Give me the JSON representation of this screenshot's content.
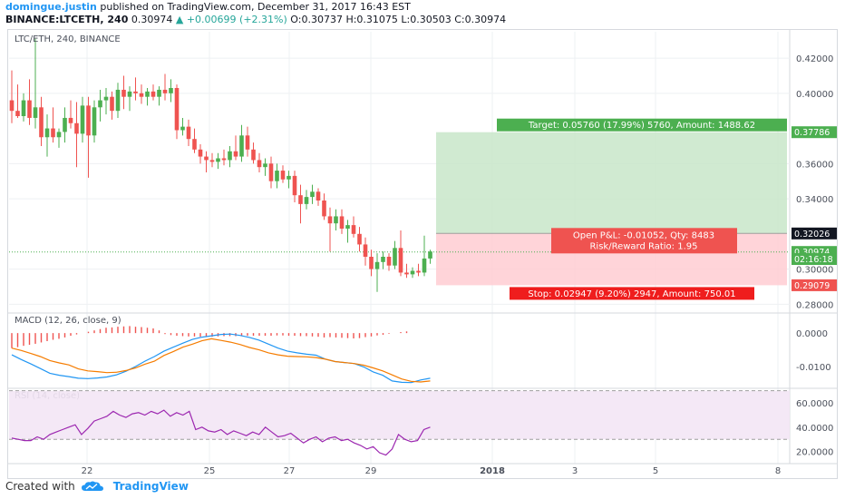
{
  "header": {
    "author": "domingue.justin",
    "published": "published on TradingView.com, December 31, 2017 16:43 EST",
    "symbol": "BINANCE:LTCETH, 240",
    "last": "0.30974",
    "change": "+0.00699 (+2.31%)",
    "ohlc_o": "O:0.30737",
    "ohlc_h": "H:0.31075",
    "ohlc_l": "L:0.30503",
    "ohlc_c": "C:0.30974"
  },
  "footer": {
    "created_with": "Created with",
    "brand": "TradingView"
  },
  "colors": {
    "up": "#4caf50",
    "down": "#ef5350",
    "macd": "#2196f3",
    "signal": "#f57c00",
    "rsi": "#9c27b0",
    "target_zone": "#c8e6c9",
    "stop_zone": "#ffcdd2",
    "author": "#2196f3"
  },
  "chart_data": [
    {
      "type": "candlestick",
      "title": "LTC/ETH, 240, BINANCE",
      "x_labels": [
        "22",
        "25",
        "27",
        "29",
        "2018",
        "3",
        "5",
        "8"
      ],
      "ylim": [
        0.275,
        0.435
      ],
      "y_ticks": [
        "0.42000",
        "0.40000",
        "0.36000",
        "0.34000",
        "0.30000",
        "0.28000"
      ],
      "price_tags": [
        {
          "label": "0.37786",
          "value": 0.37786,
          "color": "#4caf50"
        },
        {
          "label": "0.32026",
          "value": 0.32026,
          "color": "#131722"
        },
        {
          "label": "0.30974",
          "value": 0.30974,
          "color": "#4caf50"
        },
        {
          "label": "02:16:18",
          "value": 0.3057,
          "color": "#4caf50"
        },
        {
          "label": "0.29079",
          "value": 0.29079,
          "color": "#ef5350"
        }
      ],
      "candles": [
        {
          "o": 0.396,
          "h": 0.413,
          "l": 0.383,
          "c": 0.39
        },
        {
          "o": 0.39,
          "h": 0.405,
          "l": 0.386,
          "c": 0.387
        },
        {
          "o": 0.387,
          "h": 0.4,
          "l": 0.384,
          "c": 0.396
        },
        {
          "o": 0.396,
          "h": 0.408,
          "l": 0.382,
          "c": 0.386
        },
        {
          "o": 0.386,
          "h": 0.431,
          "l": 0.38,
          "c": 0.392
        },
        {
          "o": 0.392,
          "h": 0.398,
          "l": 0.37,
          "c": 0.375
        },
        {
          "o": 0.375,
          "h": 0.388,
          "l": 0.364,
          "c": 0.38
        },
        {
          "o": 0.38,
          "h": 0.392,
          "l": 0.372,
          "c": 0.375
        },
        {
          "o": 0.375,
          "h": 0.38,
          "l": 0.369,
          "c": 0.378
        },
        {
          "o": 0.378,
          "h": 0.392,
          "l": 0.372,
          "c": 0.386
        },
        {
          "o": 0.386,
          "h": 0.396,
          "l": 0.38,
          "c": 0.383
        },
        {
          "o": 0.383,
          "h": 0.395,
          "l": 0.358,
          "c": 0.377
        },
        {
          "o": 0.377,
          "h": 0.398,
          "l": 0.372,
          "c": 0.393
        },
        {
          "o": 0.393,
          "h": 0.398,
          "l": 0.352,
          "c": 0.376
        },
        {
          "o": 0.376,
          "h": 0.396,
          "l": 0.372,
          "c": 0.392
        },
        {
          "o": 0.392,
          "h": 0.402,
          "l": 0.384,
          "c": 0.396
        },
        {
          "o": 0.396,
          "h": 0.403,
          "l": 0.388,
          "c": 0.398
        },
        {
          "o": 0.398,
          "h": 0.401,
          "l": 0.385,
          "c": 0.39
        },
        {
          "o": 0.39,
          "h": 0.406,
          "l": 0.386,
          "c": 0.402
        },
        {
          "o": 0.402,
          "h": 0.41,
          "l": 0.391,
          "c": 0.398
        },
        {
          "o": 0.398,
          "h": 0.404,
          "l": 0.39,
          "c": 0.401
        },
        {
          "o": 0.401,
          "h": 0.409,
          "l": 0.396,
          "c": 0.4
        },
        {
          "o": 0.4,
          "h": 0.405,
          "l": 0.394,
          "c": 0.398
        },
        {
          "o": 0.398,
          "h": 0.403,
          "l": 0.393,
          "c": 0.401
        },
        {
          "o": 0.401,
          "h": 0.405,
          "l": 0.396,
          "c": 0.398
        },
        {
          "o": 0.398,
          "h": 0.404,
          "l": 0.393,
          "c": 0.402
        },
        {
          "o": 0.402,
          "h": 0.411,
          "l": 0.396,
          "c": 0.4
        },
        {
          "o": 0.4,
          "h": 0.408,
          "l": 0.395,
          "c": 0.403
        },
        {
          "o": 0.403,
          "h": 0.405,
          "l": 0.374,
          "c": 0.379
        },
        {
          "o": 0.379,
          "h": 0.386,
          "l": 0.376,
          "c": 0.381
        },
        {
          "o": 0.381,
          "h": 0.385,
          "l": 0.37,
          "c": 0.374
        },
        {
          "o": 0.374,
          "h": 0.38,
          "l": 0.366,
          "c": 0.368
        },
        {
          "o": 0.368,
          "h": 0.371,
          "l": 0.36,
          "c": 0.364
        },
        {
          "o": 0.364,
          "h": 0.367,
          "l": 0.355,
          "c": 0.362
        },
        {
          "o": 0.362,
          "h": 0.366,
          "l": 0.358,
          "c": 0.361
        },
        {
          "o": 0.361,
          "h": 0.366,
          "l": 0.357,
          "c": 0.363
        },
        {
          "o": 0.363,
          "h": 0.368,
          "l": 0.359,
          "c": 0.362
        },
        {
          "o": 0.362,
          "h": 0.37,
          "l": 0.358,
          "c": 0.367
        },
        {
          "o": 0.367,
          "h": 0.376,
          "l": 0.362,
          "c": 0.364
        },
        {
          "o": 0.364,
          "h": 0.382,
          "l": 0.361,
          "c": 0.376
        },
        {
          "o": 0.376,
          "h": 0.381,
          "l": 0.364,
          "c": 0.368
        },
        {
          "o": 0.368,
          "h": 0.372,
          "l": 0.36,
          "c": 0.362
        },
        {
          "o": 0.362,
          "h": 0.366,
          "l": 0.355,
          "c": 0.358
        },
        {
          "o": 0.358,
          "h": 0.363,
          "l": 0.353,
          "c": 0.36
        },
        {
          "o": 0.36,
          "h": 0.364,
          "l": 0.346,
          "c": 0.35
        },
        {
          "o": 0.35,
          "h": 0.36,
          "l": 0.346,
          "c": 0.356
        },
        {
          "o": 0.356,
          "h": 0.359,
          "l": 0.349,
          "c": 0.351
        },
        {
          "o": 0.351,
          "h": 0.356,
          "l": 0.346,
          "c": 0.353
        },
        {
          "o": 0.353,
          "h": 0.356,
          "l": 0.338,
          "c": 0.342
        },
        {
          "o": 0.342,
          "h": 0.348,
          "l": 0.326,
          "c": 0.337
        },
        {
          "o": 0.337,
          "h": 0.345,
          "l": 0.334,
          "c": 0.341
        },
        {
          "o": 0.341,
          "h": 0.348,
          "l": 0.337,
          "c": 0.344
        },
        {
          "o": 0.344,
          "h": 0.346,
          "l": 0.336,
          "c": 0.339
        },
        {
          "o": 0.339,
          "h": 0.343,
          "l": 0.328,
          "c": 0.33
        },
        {
          "o": 0.33,
          "h": 0.335,
          "l": 0.31,
          "c": 0.326
        },
        {
          "o": 0.326,
          "h": 0.334,
          "l": 0.322,
          "c": 0.33
        },
        {
          "o": 0.33,
          "h": 0.334,
          "l": 0.32,
          "c": 0.323
        },
        {
          "o": 0.323,
          "h": 0.328,
          "l": 0.315,
          "c": 0.325
        },
        {
          "o": 0.325,
          "h": 0.33,
          "l": 0.318,
          "c": 0.32
        },
        {
          "o": 0.32,
          "h": 0.324,
          "l": 0.31,
          "c": 0.314
        },
        {
          "o": 0.314,
          "h": 0.318,
          "l": 0.302,
          "c": 0.307
        },
        {
          "o": 0.307,
          "h": 0.311,
          "l": 0.296,
          "c": 0.3
        },
        {
          "o": 0.3,
          "h": 0.309,
          "l": 0.287,
          "c": 0.304
        },
        {
          "o": 0.304,
          "h": 0.31,
          "l": 0.3,
          "c": 0.307
        },
        {
          "o": 0.307,
          "h": 0.309,
          "l": 0.299,
          "c": 0.302
        },
        {
          "o": 0.302,
          "h": 0.316,
          "l": 0.3,
          "c": 0.312
        },
        {
          "o": 0.312,
          "h": 0.322,
          "l": 0.296,
          "c": 0.298
        },
        {
          "o": 0.298,
          "h": 0.303,
          "l": 0.295,
          "c": 0.297
        },
        {
          "o": 0.297,
          "h": 0.301,
          "l": 0.295,
          "c": 0.299
        },
        {
          "o": 0.299,
          "h": 0.303,
          "l": 0.296,
          "c": 0.298
        },
        {
          "o": 0.298,
          "h": 0.319,
          "l": 0.296,
          "c": 0.306
        },
        {
          "o": 0.306,
          "h": 0.311,
          "l": 0.303,
          "c": 0.31
        }
      ],
      "current_price": 0.30974,
      "position": {
        "entry": 0.32026,
        "target": 0.37786,
        "stop": 0.29079,
        "target_label": "Target: 0.05760 (17.99%) 5760, Amount: 1488.62",
        "pnl_label": "Open P&L: -0.01052, Qty: 8483",
        "rr_label": "Risk/Reward Ratio: 1.95",
        "stop_label": "Stop: 0.02947 (9.20%) 2947, Amount: 750.01"
      }
    },
    {
      "type": "line",
      "title": "MACD (12, 26, close, 9)",
      "ylim": [
        -0.0165,
        0.006
      ],
      "y_ticks": [
        "0.0000",
        "-0.0100"
      ],
      "series": [
        {
          "values": [
            -0.0065,
            -0.0079,
            -0.0092,
            -0.0106,
            -0.012,
            -0.0126,
            -0.013,
            -0.0135,
            -0.0136,
            -0.0134,
            -0.0131,
            -0.0125,
            -0.0114,
            -0.01,
            -0.0084,
            -0.007,
            -0.0054,
            -0.0042,
            -0.003,
            -0.0019,
            -0.0012,
            -0.0008,
            -0.0004,
            -0.0003,
            -0.0007,
            -0.0013,
            -0.0021,
            -0.0033,
            -0.0045,
            -0.0054,
            -0.0059,
            -0.0063,
            -0.0066,
            -0.0078,
            -0.0085,
            -0.0088,
            -0.0091,
            -0.0101,
            -0.0116,
            -0.0126,
            -0.0143,
            -0.0147,
            -0.0148,
            -0.014,
            -0.0135
          ]
        },
        {
          "values": [
            -0.0045,
            -0.0052,
            -0.0061,
            -0.007,
            -0.0082,
            -0.0089,
            -0.0095,
            -0.0107,
            -0.0113,
            -0.0115,
            -0.0118,
            -0.0117,
            -0.0112,
            -0.0104,
            -0.0093,
            -0.0084,
            -0.0067,
            -0.0055,
            -0.0042,
            -0.0033,
            -0.0023,
            -0.0017,
            -0.0022,
            -0.0027,
            -0.0034,
            -0.0043,
            -0.005,
            -0.0059,
            -0.0065,
            -0.0069,
            -0.007,
            -0.0071,
            -0.0073,
            -0.0078,
            -0.0085,
            -0.0088,
            -0.0091,
            -0.0096,
            -0.0104,
            -0.0113,
            -0.0125,
            -0.0137,
            -0.0144,
            -0.0146,
            -0.0143
          ]
        }
      ],
      "histogram": [
        -0.0045,
        -0.0042,
        -0.0038,
        -0.0035,
        -0.0032,
        -0.0028,
        -0.0024,
        -0.002,
        -0.0017,
        -0.0013,
        -0.0008,
        -0.0004,
        0.0,
        0.0004,
        0.0008,
        0.0012,
        0.0016,
        0.0017,
        0.0019,
        0.002,
        0.0021,
        0.0019,
        0.0018,
        0.0016,
        0.0014,
        0.0008,
        -0.0003,
        -0.0006,
        -0.0008,
        -0.0009,
        -0.001,
        -0.001,
        -0.0011,
        -0.0011,
        -0.0011,
        -0.001,
        -0.0009,
        -0.0009,
        -0.0009,
        -0.0008,
        -0.0008,
        -0.0008,
        -0.0008,
        -0.0008,
        -0.0008,
        -0.0007,
        -0.0007,
        -0.0008,
        -0.0008,
        -0.0009,
        -0.0009,
        -0.001,
        -0.0011,
        -0.0013,
        -0.0012,
        -0.0013,
        -0.0014,
        -0.0015,
        -0.0016,
        -0.0015,
        -0.0012,
        -0.001,
        -0.0007,
        -0.0005,
        -0.0002,
        0.0,
        0.0003,
        0.0005
      ]
    },
    {
      "type": "line",
      "title": "RSI (14, close)",
      "ylim": [
        10,
        72
      ],
      "y_ticks": [
        "60.0000",
        "40.0000",
        "20.0000"
      ],
      "band": [
        30,
        70
      ],
      "series": [
        {
          "values": [
            31,
            30,
            29,
            29,
            32,
            30,
            34,
            36,
            38,
            40,
            42,
            34,
            39,
            45,
            47,
            49,
            53,
            50,
            48,
            51,
            52,
            50,
            53,
            51,
            54,
            49,
            52,
            50,
            53,
            38,
            40,
            37,
            36,
            38,
            34,
            37,
            35,
            33,
            36,
            34,
            40,
            36,
            32,
            33,
            35,
            31,
            27,
            30,
            32,
            28,
            31,
            32,
            29,
            30,
            27,
            25,
            22,
            24,
            19,
            17,
            22,
            34,
            30,
            28,
            29,
            38,
            40
          ]
        }
      ]
    }
  ]
}
